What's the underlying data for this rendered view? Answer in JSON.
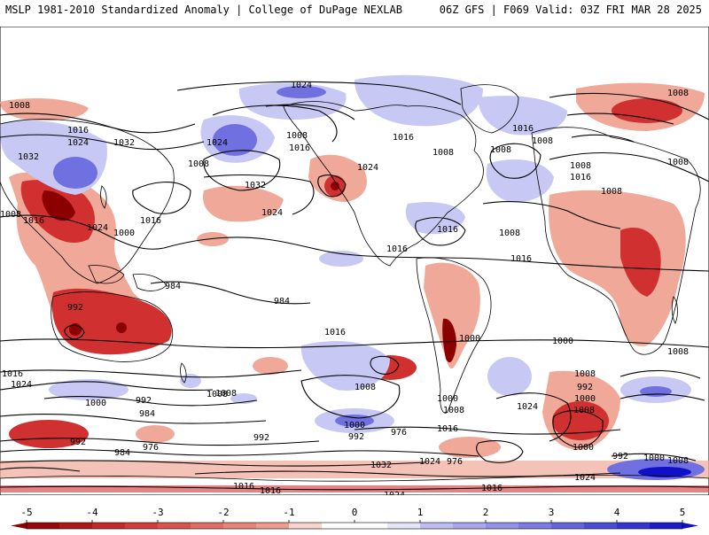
{
  "header": {
    "left": "MSLP 1981-2010 Standardized Anomaly | College of DuPage NEXLAB",
    "right": "06Z GFS | F069 Valid: 03Z FRI MAR 28 2025"
  },
  "colors": {
    "neg_strong": "#8b0000",
    "neg_mid": "#d03030",
    "neg_light": "#f0a898",
    "pos_light": "#c8c8f4",
    "pos_mid": "#7070e0",
    "pos_strong": "#1010c8",
    "contour": "#000000",
    "coast": "#000000"
  },
  "map": {
    "type": "map",
    "projection": "equirectangular",
    "features": [
      "coastlines",
      "country-borders",
      "state-borders",
      "isobars",
      "anomaly-shading"
    ],
    "isobar_labels": [
      "1024",
      "1008",
      "1008",
      "1016",
      "1024",
      "1032",
      "1032",
      "1024",
      "1008",
      "1016",
      "1024",
      "1016",
      "1008",
      "1008",
      "1032",
      "1016",
      "1024",
      "1016",
      "1008",
      "1016",
      "1016",
      "1016",
      "1008",
      "1008",
      "1008",
      "1016",
      "1008",
      "1008",
      "1016",
      "1008",
      "1024",
      "1000",
      "984",
      "992",
      "984",
      "1000",
      "1000",
      "1008",
      "1024",
      "1016",
      "1000",
      "992",
      "984",
      "984",
      "992",
      "976",
      "1008",
      "1016",
      "1008",
      "1000",
      "992",
      "976",
      "992",
      "1016",
      "1024",
      "1032",
      "976",
      "1008",
      "992",
      "1000",
      "1008",
      "1000",
      "1008",
      "1024",
      "992",
      "1000",
      "1008",
      "1000",
      "1024",
      "1016",
      "1024",
      "1016",
      "1016",
      "1008"
    ]
  },
  "legend": {
    "ticks": [
      "-5",
      "-4",
      "-3",
      "-2",
      "-1",
      "0",
      "1",
      "2",
      "3",
      "4",
      "5"
    ],
    "bins": [
      -5,
      -4.5,
      -4,
      -3.5,
      -3,
      -2.5,
      -2,
      -1.5,
      -1,
      -0.5,
      0,
      0.5,
      1,
      1.5,
      2,
      2.5,
      3,
      3.5,
      4,
      4.5,
      5
    ]
  }
}
